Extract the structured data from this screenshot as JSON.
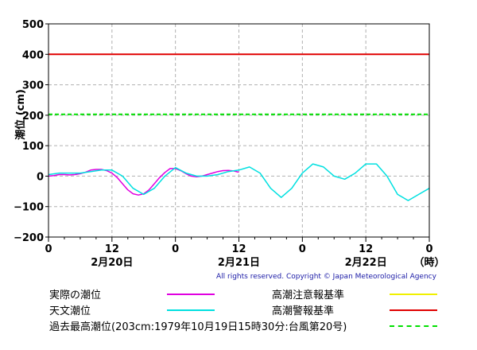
{
  "chart_data": {
    "type": "line",
    "ylabel": "潮位 (cm)",
    "ylim": [
      -200,
      500
    ],
    "yticks": [
      500,
      400,
      300,
      200,
      100,
      0,
      -100,
      -200
    ],
    "xlim": [
      0,
      72
    ],
    "xticks": [
      {
        "x": 0,
        "label": "0"
      },
      {
        "x": 12,
        "label": "12"
      },
      {
        "x": 24,
        "label": "0"
      },
      {
        "x": 36,
        "label": "12"
      },
      {
        "x": 48,
        "label": "0"
      },
      {
        "x": 60,
        "label": "12"
      },
      {
        "x": 72,
        "label": "0"
      }
    ],
    "date_labels": [
      {
        "x": 12,
        "label": "2月20日"
      },
      {
        "x": 36,
        "label": "2月21日"
      },
      {
        "x": 60,
        "label": "2月22日"
      },
      {
        "x": 72,
        "label": "（時）"
      }
    ],
    "grid": true,
    "reference_lines": [
      {
        "name": "高潮警報基準",
        "value": 400,
        "color": "#e00000",
        "style": "solid"
      },
      {
        "name": "過去最高潮位",
        "value": 203,
        "color": "#00e000",
        "style": "dashed"
      }
    ],
    "series": [
      {
        "name": "実際の潮位",
        "color": "#e000e0",
        "x": [
          0,
          1,
          2,
          3,
          4,
          5,
          6,
          7,
          8,
          9,
          10,
          11,
          12,
          13,
          14,
          15,
          16,
          17,
          18,
          19,
          20,
          21,
          22,
          23,
          24,
          25,
          26,
          27,
          28,
          29,
          30,
          31,
          32,
          33,
          34,
          35,
          36
        ],
        "y": [
          0,
          2,
          5,
          5,
          4,
          5,
          8,
          13,
          20,
          22,
          22,
          18,
          10,
          -5,
          -25,
          -45,
          -58,
          -62,
          -58,
          -45,
          -25,
          -5,
          12,
          25,
          25,
          18,
          8,
          0,
          -2,
          0,
          5,
          10,
          15,
          18,
          19,
          17,
          13
        ]
      },
      {
        "name": "天文潮位",
        "color": "#00e0e0",
        "x": [
          0,
          2,
          4,
          6,
          8,
          10,
          12,
          14,
          16,
          18,
          20,
          22,
          24,
          26,
          28,
          30,
          32,
          34,
          36,
          38,
          40,
          42,
          44,
          46,
          48,
          50,
          52,
          54,
          56,
          58,
          60,
          62,
          64,
          66,
          68,
          70,
          72
        ],
        "y": [
          5,
          10,
          10,
          10,
          15,
          20,
          20,
          0,
          -40,
          -60,
          -40,
          0,
          28,
          10,
          0,
          0,
          5,
          15,
          20,
          30,
          10,
          -40,
          -70,
          -40,
          10,
          40,
          30,
          0,
          -10,
          10,
          40,
          40,
          0,
          -60,
          -80,
          -60,
          -40
        ]
      }
    ]
  },
  "copyright": "All rights reserved. Copyright © Japan Meteorological Agency",
  "legend": [
    {
      "label": "実際の潮位",
      "color": "#e000e0",
      "style": "solid"
    },
    {
      "label": "高潮注意報基準",
      "color": "#f0f000",
      "style": "solid"
    },
    {
      "label": "天文潮位",
      "color": "#00e0e0",
      "style": "solid"
    },
    {
      "label": "高潮警報基準",
      "color": "#e00000",
      "style": "solid"
    },
    {
      "label": "過去最高潮位(203cm:1979年10月19日15時30分:台風第20号)",
      "color": "#00e000",
      "style": "dashed"
    }
  ]
}
